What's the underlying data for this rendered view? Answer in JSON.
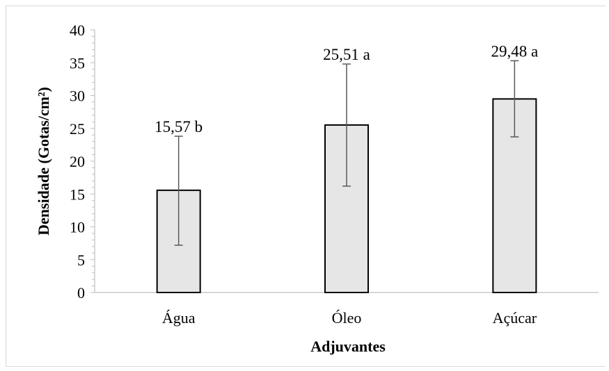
{
  "chart_data": {
    "type": "bar",
    "xlabel": "Adjuvantes",
    "ylabel": "Densidade (Gotas/cm²)",
    "ylim": [
      0,
      40
    ],
    "yticks": [
      "0",
      "5",
      "10",
      "15",
      "20",
      "25",
      "30",
      "35",
      "40"
    ],
    "categories": [
      "Água",
      "Óleo",
      "Açúcar"
    ],
    "values": [
      15.57,
      25.51,
      29.48
    ],
    "error_low": [
      7.2,
      16.2,
      23.7
    ],
    "error_high": [
      23.8,
      34.8,
      35.3
    ],
    "data_labels": [
      "15,57 b",
      "25,51 a",
      "29,48 a"
    ],
    "grid": false,
    "bar_color": "#e6e6e6",
    "bar_edge_color": "#000000",
    "error_bar_color": "#595959"
  }
}
